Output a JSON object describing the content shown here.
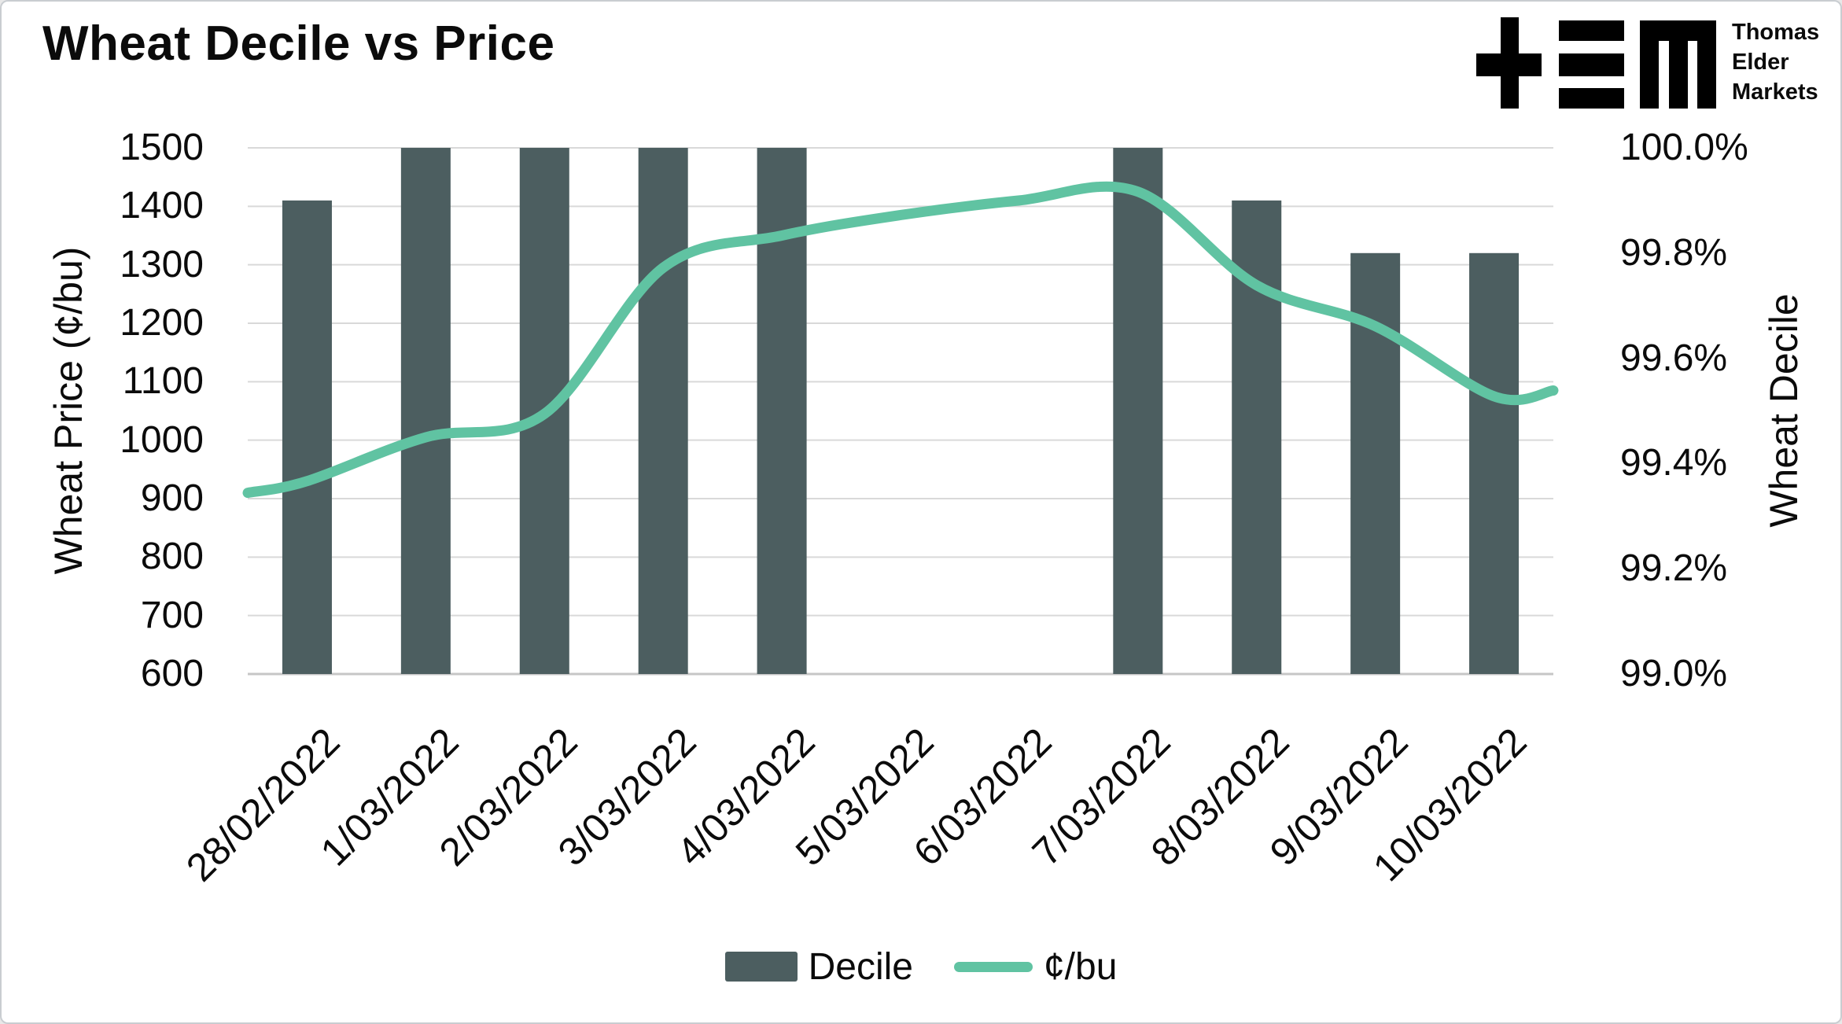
{
  "title": "Wheat Decile vs Price",
  "logo": {
    "glyph": "tem-monogram",
    "lines": [
      "Thomas",
      "Elder",
      "Markets"
    ]
  },
  "colors": {
    "bar": "#4C5E60",
    "line": "#60C3A2",
    "grid": "#D9D9D9",
    "axis_line": "#C6C6C6",
    "text": "#0B0B0B",
    "background": "#FFFFFF"
  },
  "chart_data": {
    "type": "combo",
    "subtypes": [
      "bar",
      "line"
    ],
    "categories": [
      "28/02/2022",
      "1/03/2022",
      "2/03/2022",
      "3/03/2022",
      "4/03/2022",
      "5/03/2022",
      "6/03/2022",
      "7/03/2022",
      "8/03/2022",
      "9/03/2022",
      "10/03/2022"
    ],
    "series": [
      {
        "name": "Decile",
        "type": "bar",
        "axis": "right",
        "unit": "%",
        "values": [
          99.9,
          100.0,
          100.0,
          100.0,
          100.0,
          null,
          null,
          100.0,
          99.9,
          99.8,
          99.8
        ]
      },
      {
        "name": "¢/bu",
        "type": "line",
        "axis": "left",
        "unit": "¢/bu",
        "values": [
          930,
          1005,
          1045,
          1295,
          1350,
          1385,
          1410,
          1425,
          1265,
          1195,
          1075
        ],
        "edge_start_value": 910,
        "edge_end_value": 1085
      }
    ],
    "left_axis": {
      "title": "Wheat Price (¢/bu)",
      "min": 600,
      "max": 1500,
      "step": 100,
      "tick_labels": [
        "600",
        "700",
        "800",
        "900",
        "1000",
        "1100",
        "1200",
        "1300",
        "1400",
        "1500"
      ]
    },
    "right_axis": {
      "title": "Wheat Decile",
      "min": 99.0,
      "max": 100.0,
      "step": 0.2,
      "tick_labels": [
        "99.0%",
        "99.2%",
        "99.4%",
        "99.6%",
        "99.8%",
        "100.0%"
      ]
    },
    "grid": "horizontal",
    "legend_position": "bottom",
    "legend": [
      "Decile",
      "¢/bu"
    ]
  }
}
